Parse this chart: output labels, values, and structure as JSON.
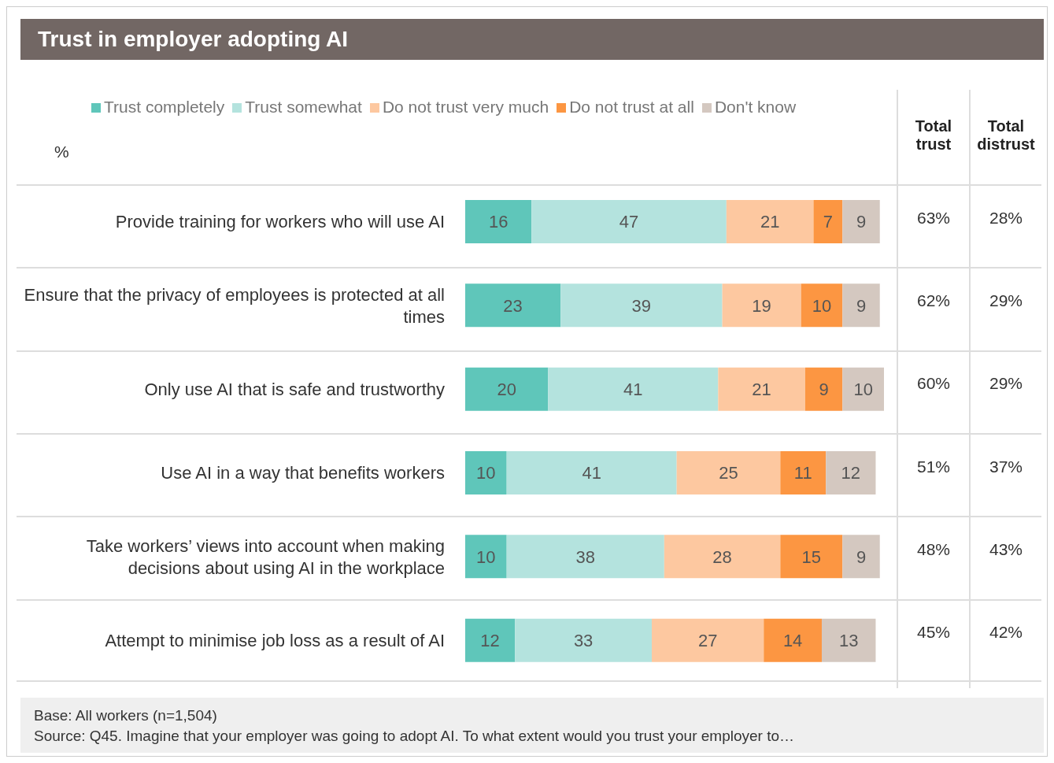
{
  "chart_data": {
    "type": "bar",
    "orientation": "horizontal",
    "stacked": true,
    "data_labels": true,
    "legend": "top",
    "title": "Trust in employer adopting AI",
    "xlabel": "%",
    "categories": [
      "Provide training for workers who will use AI",
      "Ensure that the privacy of employees is protected at all times",
      "Only use AI that is safe and trustworthy",
      "Use AI in a way that benefits workers",
      "Take workers’ views into account when making decisions about using AI in the workplace",
      "Attempt to minimise job loss as a result of AI"
    ],
    "series": [
      {
        "name": "Trust completely",
        "color": "#5fc6ba",
        "values": [
          16,
          23,
          20,
          10,
          10,
          12
        ]
      },
      {
        "name": "Trust somewhat",
        "color": "#b4e3de",
        "values": [
          47,
          39,
          41,
          41,
          38,
          33
        ]
      },
      {
        "name": "Do not trust very much",
        "color": "#fdc8a0",
        "values": [
          21,
          19,
          21,
          25,
          28,
          27
        ]
      },
      {
        "name": "Do not trust at all",
        "color": "#fc9642",
        "values": [
          7,
          10,
          9,
          11,
          15,
          14
        ]
      },
      {
        "name": "Don't know",
        "color": "#d4c8c0",
        "values": [
          9,
          9,
          10,
          12,
          9,
          13
        ]
      }
    ],
    "annotations": [
      "Total trust",
      "Total distrust",
      "63%",
      "28%",
      "62%",
      "29%",
      "60%",
      "29%",
      "51%",
      "37%",
      "48%",
      "43%",
      "45%",
      "42%",
      "Base: All workers (n=1,504)",
      "Source: Q45. Imagine that your employer was going to adopt AI. To what extent would you trust your employer to…"
    ]
  }
}
